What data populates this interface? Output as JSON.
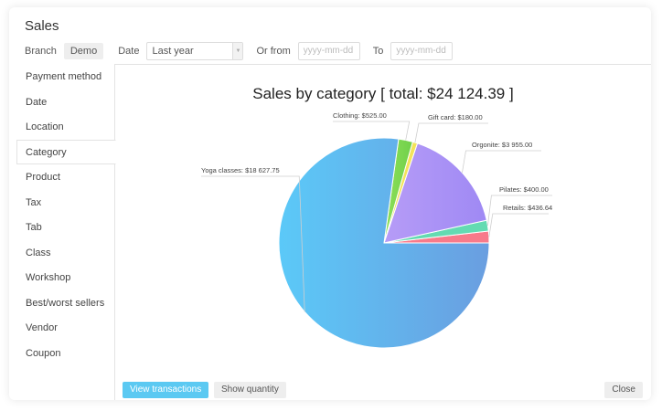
{
  "window": {
    "title": "Sales"
  },
  "filters": {
    "branch_label": "Branch",
    "branch_value": "Demo",
    "date_label": "Date",
    "date_value": "Last year",
    "from_label": "Or from",
    "from_placeholder": "yyyy-mm-dd",
    "to_label": "To",
    "to_placeholder": "yyyy-mm-dd"
  },
  "sidebar": {
    "items": [
      {
        "label": "Payment method",
        "active": false
      },
      {
        "label": "Date",
        "active": false
      },
      {
        "label": "Location",
        "active": false
      },
      {
        "label": "Category",
        "active": true
      },
      {
        "label": "Product",
        "active": false
      },
      {
        "label": "Tax",
        "active": false
      },
      {
        "label": "Tab",
        "active": false
      },
      {
        "label": "Class",
        "active": false
      },
      {
        "label": "Workshop",
        "active": false
      },
      {
        "label": "Best/worst sellers",
        "active": false
      },
      {
        "label": "Vendor",
        "active": false
      },
      {
        "label": "Coupon",
        "active": false
      }
    ]
  },
  "chart_data": {
    "type": "pie",
    "title": "Sales by category",
    "total_prefix": "[ total:",
    "total_value": "$24 124.39",
    "total_suffix": "]",
    "slices": [
      {
        "name": "Yoga classes",
        "label": "Yoga classes: $18 627.75",
        "value": 18627.75,
        "color_start": "#5bc9f8",
        "color_end": "#6a9ee0"
      },
      {
        "name": "Clothing",
        "label": "Clothing: $525.00",
        "value": 525.0,
        "color_start": "#8fe05a",
        "color_end": "#6fd04a"
      },
      {
        "name": "Gift card",
        "label": "Gift card: $180.00",
        "value": 180.0,
        "color_start": "#f3e35a",
        "color_end": "#f3e35a"
      },
      {
        "name": "Orgonite",
        "label": "Orgonite: $3 955.00",
        "value": 3955.0,
        "color_start": "#b69cf7",
        "color_end": "#9f89f4"
      },
      {
        "name": "Pilates",
        "label": "Pilates: $400.00",
        "value": 400.0,
        "color_start": "#63dbb2",
        "color_end": "#63dbb2"
      },
      {
        "name": "Retails",
        "label": "Retails: $436.64",
        "value": 436.64,
        "color_start": "#f87a8a",
        "color_end": "#f87a8a"
      }
    ]
  },
  "footer": {
    "view_transactions": "View transactions",
    "show_quantity": "Show quantity",
    "close": "Close"
  }
}
